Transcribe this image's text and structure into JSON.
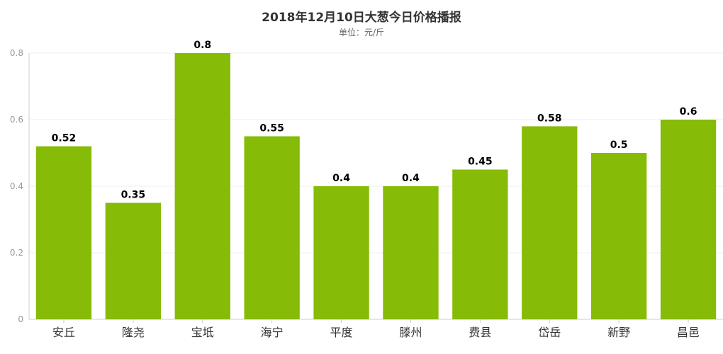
{
  "chart_data": {
    "type": "bar",
    "title": "2018年12月10日大葱今日价格播报",
    "subtitle": "单位：元/斤",
    "xlabel": "",
    "ylabel": "",
    "categories": [
      "安丘",
      "隆尧",
      "宝坻",
      "海宁",
      "平度",
      "滕州",
      "费县",
      "岱岳",
      "新野",
      "昌邑"
    ],
    "values": [
      0.52,
      0.35,
      0.8,
      0.55,
      0.4,
      0.4,
      0.45,
      0.58,
      0.5,
      0.6
    ],
    "value_labels": [
      "0.52",
      "0.35",
      "0.8",
      "0.55",
      "0.4",
      "0.4",
      "0.45",
      "0.58",
      "0.5",
      "0.6"
    ],
    "ylim": [
      0,
      0.8
    ],
    "yticks": [
      0,
      0.2,
      0.4,
      0.6,
      0.8
    ],
    "ytick_labels": [
      "0",
      "0.2",
      "0.4",
      "0.6",
      "0.8"
    ],
    "grid": true,
    "legend": "none",
    "bar_color": "#86BB08",
    "grid_color": "#EFEFEF",
    "axis_color": "#CCCCCC"
  }
}
